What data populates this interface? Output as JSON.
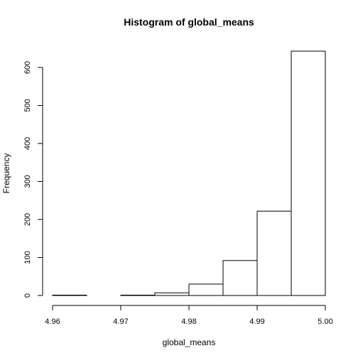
{
  "chart_data": {
    "type": "bar",
    "title": "Histogram of global_means",
    "xlabel": "global_means",
    "ylabel": "Frequency",
    "bins": [
      {
        "start": 4.96,
        "end": 4.965,
        "count": 1
      },
      {
        "start": 4.965,
        "end": 4.97,
        "count": 0
      },
      {
        "start": 4.97,
        "end": 4.975,
        "count": 1
      },
      {
        "start": 4.975,
        "end": 4.98,
        "count": 7
      },
      {
        "start": 4.98,
        "end": 4.985,
        "count": 30
      },
      {
        "start": 4.985,
        "end": 4.99,
        "count": 92
      },
      {
        "start": 4.99,
        "end": 4.995,
        "count": 222
      },
      {
        "start": 4.995,
        "end": 5.0,
        "count": 643
      }
    ],
    "xlim": [
      4.96,
      5.0
    ],
    "ylim": [
      0,
      643
    ],
    "x_ticks": [
      {
        "value": 4.96,
        "label": "4.96"
      },
      {
        "value": 4.97,
        "label": "4.97"
      },
      {
        "value": 4.98,
        "label": "4.98"
      },
      {
        "value": 4.99,
        "label": "4.99"
      },
      {
        "value": 5.0,
        "label": "5.00"
      }
    ],
    "y_ticks": [
      {
        "value": 0,
        "label": "0"
      },
      {
        "value": 100,
        "label": "100"
      },
      {
        "value": 200,
        "label": "200"
      },
      {
        "value": 300,
        "label": "300"
      },
      {
        "value": 400,
        "label": "400"
      },
      {
        "value": 500,
        "label": "500"
      },
      {
        "value": 600,
        "label": "600"
      }
    ],
    "grid": false,
    "legend": "none"
  }
}
